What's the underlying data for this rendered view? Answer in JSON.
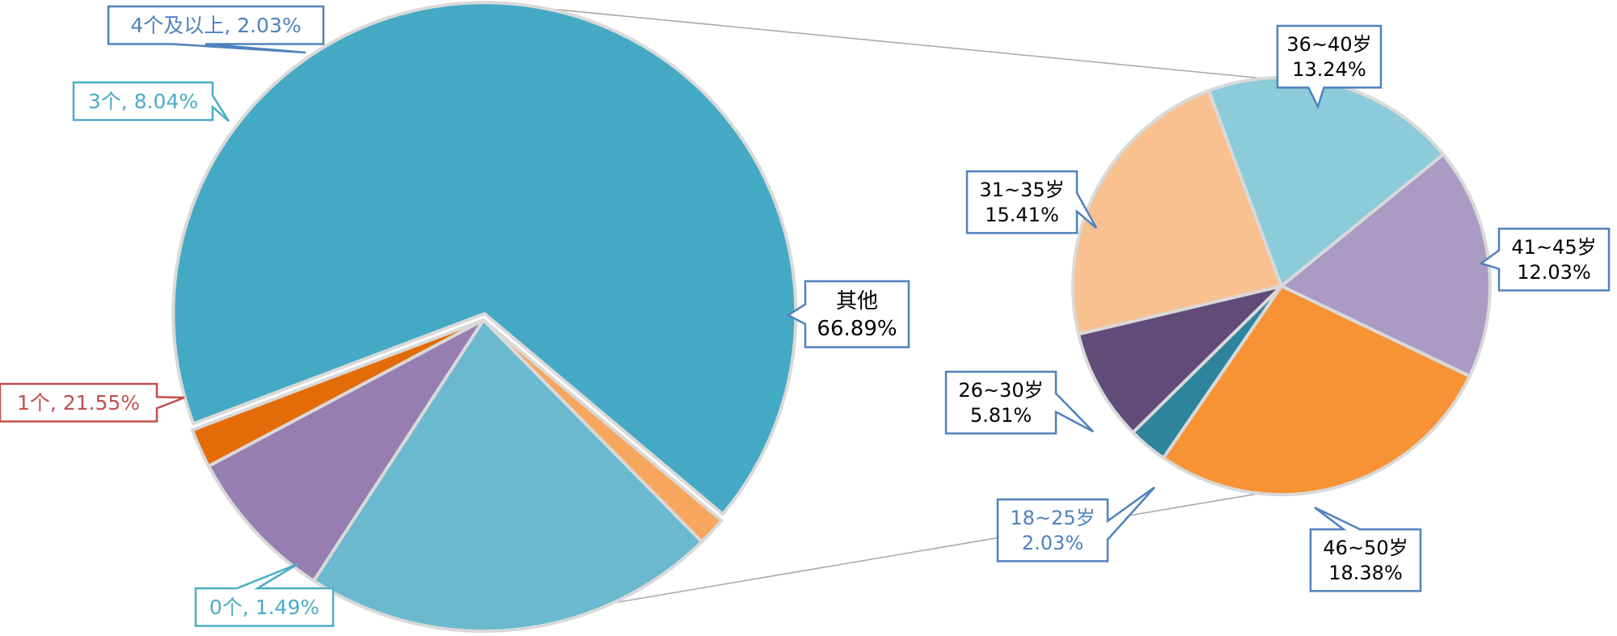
{
  "chart_data": [
    {
      "type": "pie",
      "title": "",
      "series": [
        {
          "values": [
            66.89,
            1.49,
            21.55,
            8.04,
            2.03
          ],
          "labels": [
            "其他",
            "0个",
            "1个",
            "3个",
            "4个及以上"
          ],
          "label_texts": [
            [
              "其他",
              "66.89%"
            ],
            [
              "0个, 1.49%"
            ],
            [
              "1个, 21.55%"
            ],
            [
              "3个, 8.04%"
            ],
            [
              "4个及以上, 2.03%"
            ]
          ],
          "colors": [
            "#44a9c5",
            "#f6a65d",
            "#6ab9cf",
            "#977eb1",
            "#e36c09"
          ],
          "label_colors": [
            "#000000",
            "#4bacc6",
            "#c0504d",
            "#4bacc6",
            "#4f81bd"
          ],
          "border_colors": [
            "#4f81bd",
            "#4bacc6",
            "#c0504d",
            "#4bacc6",
            "#4f81bd"
          ]
        }
      ]
    },
    {
      "type": "pie",
      "title": "",
      "series": [
        {
          "values": [
            13.24,
            12.03,
            18.38,
            2.03,
            5.81,
            15.41
          ],
          "labels": [
            "36~40岁",
            "41~45岁",
            "46~50岁",
            "18~25岁",
            "26~30岁",
            "31~35岁"
          ],
          "label_texts": [
            [
              "36~40岁",
              "13.24%"
            ],
            [
              "41~45岁",
              "12.03%"
            ],
            [
              "46~50岁",
              "18.38%"
            ],
            [
              "18~25岁",
              "2.03%"
            ],
            [
              "26~30岁",
              "5.81%"
            ],
            [
              "31~35岁",
              "15.41%"
            ]
          ],
          "colors": [
            "#8ccbd9",
            "#aa9bc4",
            "#f79334",
            "#2f849d",
            "#614b78",
            "#f9c090"
          ],
          "label_colors": [
            "#000000",
            "#000000",
            "#000000",
            "#4f81bd",
            "#000000",
            "#000000"
          ],
          "border_colors": [
            "#4f81bd",
            "#4f81bd",
            "#4f81bd",
            "#4f81bd",
            "#4f81bd",
            "#4f81bd"
          ]
        }
      ]
    }
  ]
}
